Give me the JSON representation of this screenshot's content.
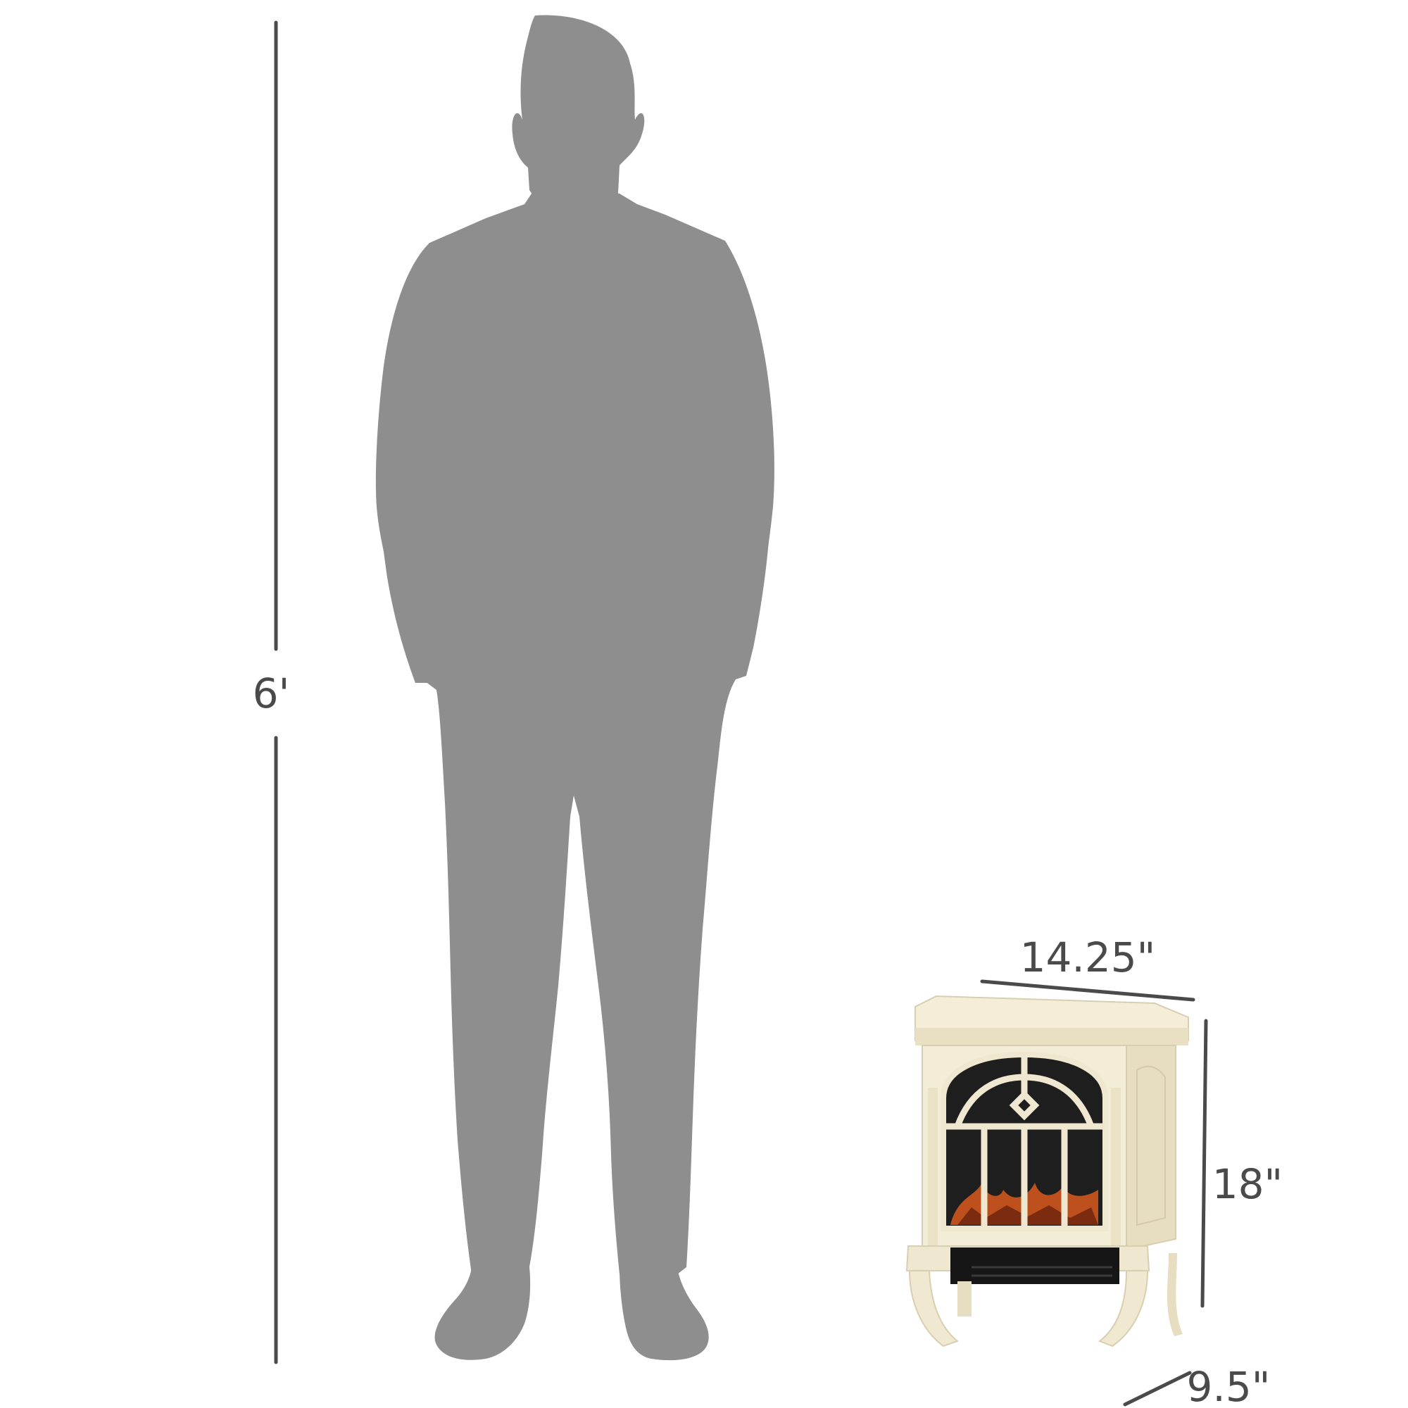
{
  "dimensions": {
    "person_height": "6'",
    "heater_width": "14.25\"",
    "heater_height": "18\"",
    "heater_depth": "9.5\""
  },
  "colors": {
    "silhouette": "#8e8e8e",
    "dimension_lines": "#4a4a4a",
    "heater_body": "#f3ecd6",
    "heater_shadow": "#e2d8bc",
    "firebox": "#1e1e1e",
    "flame": "#d9591c"
  },
  "icons": [
    "human-silhouette",
    "electric-fireplace-heater"
  ]
}
